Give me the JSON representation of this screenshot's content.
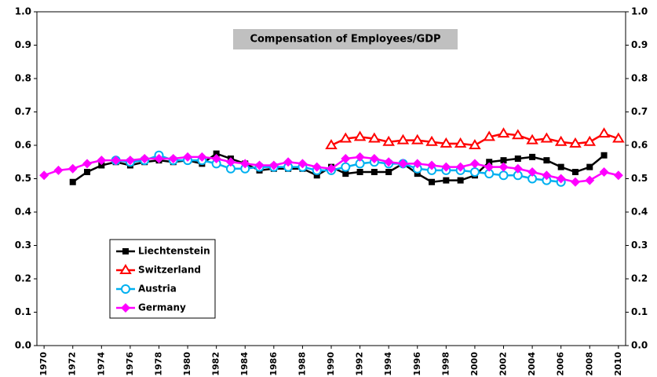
{
  "chart_data": {
    "type": "line",
    "title": "Compensation of Employees/GDP",
    "x": [
      1970,
      1971,
      1972,
      1973,
      1974,
      1975,
      1976,
      1977,
      1978,
      1979,
      1980,
      1981,
      1982,
      1983,
      1984,
      1985,
      1986,
      1987,
      1988,
      1989,
      1990,
      1991,
      1992,
      1993,
      1994,
      1995,
      1996,
      1997,
      1998,
      1999,
      2000,
      2001,
      2002,
      2003,
      2004,
      2005,
      2006,
      2007,
      2008,
      2009,
      2010
    ],
    "xlim": [
      1969.5,
      2010.5
    ],
    "xticks": [
      1970,
      1972,
      1974,
      1976,
      1978,
      1980,
      1982,
      1984,
      1986,
      1988,
      1990,
      1992,
      1994,
      1996,
      1998,
      2000,
      2002,
      2004,
      2006,
      2008,
      2010
    ],
    "ylim": [
      0,
      1
    ],
    "yticks": [
      {
        "value": 0,
        "label": "0.0"
      },
      {
        "value": 0.1,
        "label": "0.1"
      },
      {
        "value": 0.2,
        "label": "0.2"
      },
      {
        "value": 0.3,
        "label": "0.3"
      },
      {
        "value": 0.4,
        "label": "0.4"
      },
      {
        "value": 0.5,
        "label": "0.5"
      },
      {
        "value": 0.6,
        "label": "0.6"
      },
      {
        "value": 0.7,
        "label": "0.7"
      },
      {
        "value": 0.8,
        "label": "0.8"
      },
      {
        "value": 0.9,
        "label": "0.9"
      },
      {
        "value": 1,
        "label": "1.0"
      }
    ],
    "grid": false,
    "series": [
      {
        "name": "Liechtenstein",
        "color": "#000000",
        "marker": "square",
        "values": [
          null,
          null,
          0.49,
          0.52,
          0.54,
          0.55,
          0.54,
          0.55,
          0.555,
          0.55,
          0.555,
          0.545,
          0.575,
          0.56,
          0.545,
          0.525,
          0.53,
          0.53,
          0.53,
          0.51,
          0.535,
          0.515,
          0.52,
          0.52,
          0.52,
          0.545,
          0.515,
          0.49,
          0.495,
          0.495,
          0.51,
          0.55,
          0.555,
          0.56,
          0.565,
          0.555,
          0.535,
          0.52,
          0.535,
          0.57,
          null
        ]
      },
      {
        "name": "Switzerland",
        "color": "#ff0000",
        "marker": "triangle",
        "values": [
          null,
          null,
          null,
          null,
          null,
          null,
          null,
          null,
          null,
          null,
          null,
          null,
          null,
          null,
          null,
          null,
          null,
          null,
          null,
          null,
          0.6,
          0.62,
          0.625,
          0.62,
          0.61,
          0.615,
          0.615,
          0.61,
          0.605,
          0.605,
          0.6,
          0.625,
          0.635,
          0.63,
          0.615,
          0.62,
          0.61,
          0.605,
          0.61,
          0.635,
          0.62
        ]
      },
      {
        "name": "Austria",
        "color": "#00b0f0",
        "marker": "circle",
        "values": [
          null,
          null,
          null,
          null,
          null,
          0.555,
          0.55,
          0.555,
          0.57,
          0.555,
          0.555,
          0.555,
          0.545,
          0.53,
          0.53,
          0.535,
          0.535,
          0.535,
          0.535,
          0.525,
          0.525,
          0.535,
          0.545,
          0.55,
          0.545,
          0.545,
          0.53,
          0.525,
          0.525,
          0.525,
          0.52,
          0.515,
          0.51,
          0.51,
          0.5,
          0.495,
          0.49,
          null,
          null,
          null,
          null
        ]
      },
      {
        "name": "Germany",
        "color": "#ff00ff",
        "marker": "diamond",
        "values": [
          0.51,
          0.525,
          0.53,
          0.545,
          0.555,
          0.555,
          0.555,
          0.56,
          0.56,
          0.56,
          0.565,
          0.565,
          0.56,
          0.55,
          0.545,
          0.54,
          0.54,
          0.55,
          0.545,
          0.535,
          0.53,
          0.56,
          0.565,
          0.56,
          0.55,
          0.545,
          0.545,
          0.54,
          0.535,
          0.535,
          0.545,
          0.535,
          0.535,
          0.53,
          0.52,
          0.51,
          0.5,
          0.49,
          0.495,
          0.52,
          0.51
        ]
      }
    ]
  }
}
